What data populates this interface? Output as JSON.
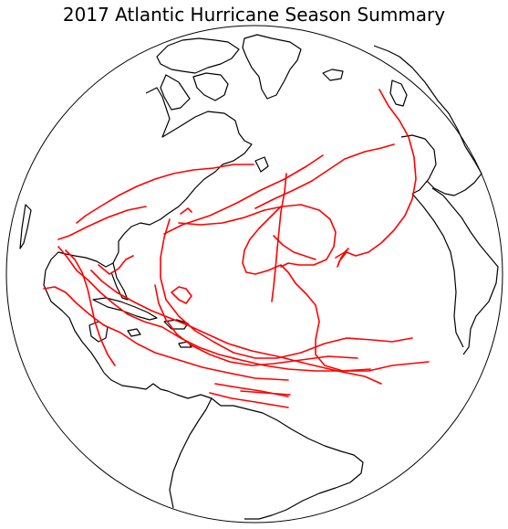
{
  "title": "2017 Atlantic Hurricane Season Summary",
  "colors": {
    "background": "#ffffff",
    "coastline": "#000000",
    "globe_outline": "#000000",
    "track": "#ff0000"
  },
  "map": {
    "projection": "orthographic",
    "track_count": 19
  }
}
